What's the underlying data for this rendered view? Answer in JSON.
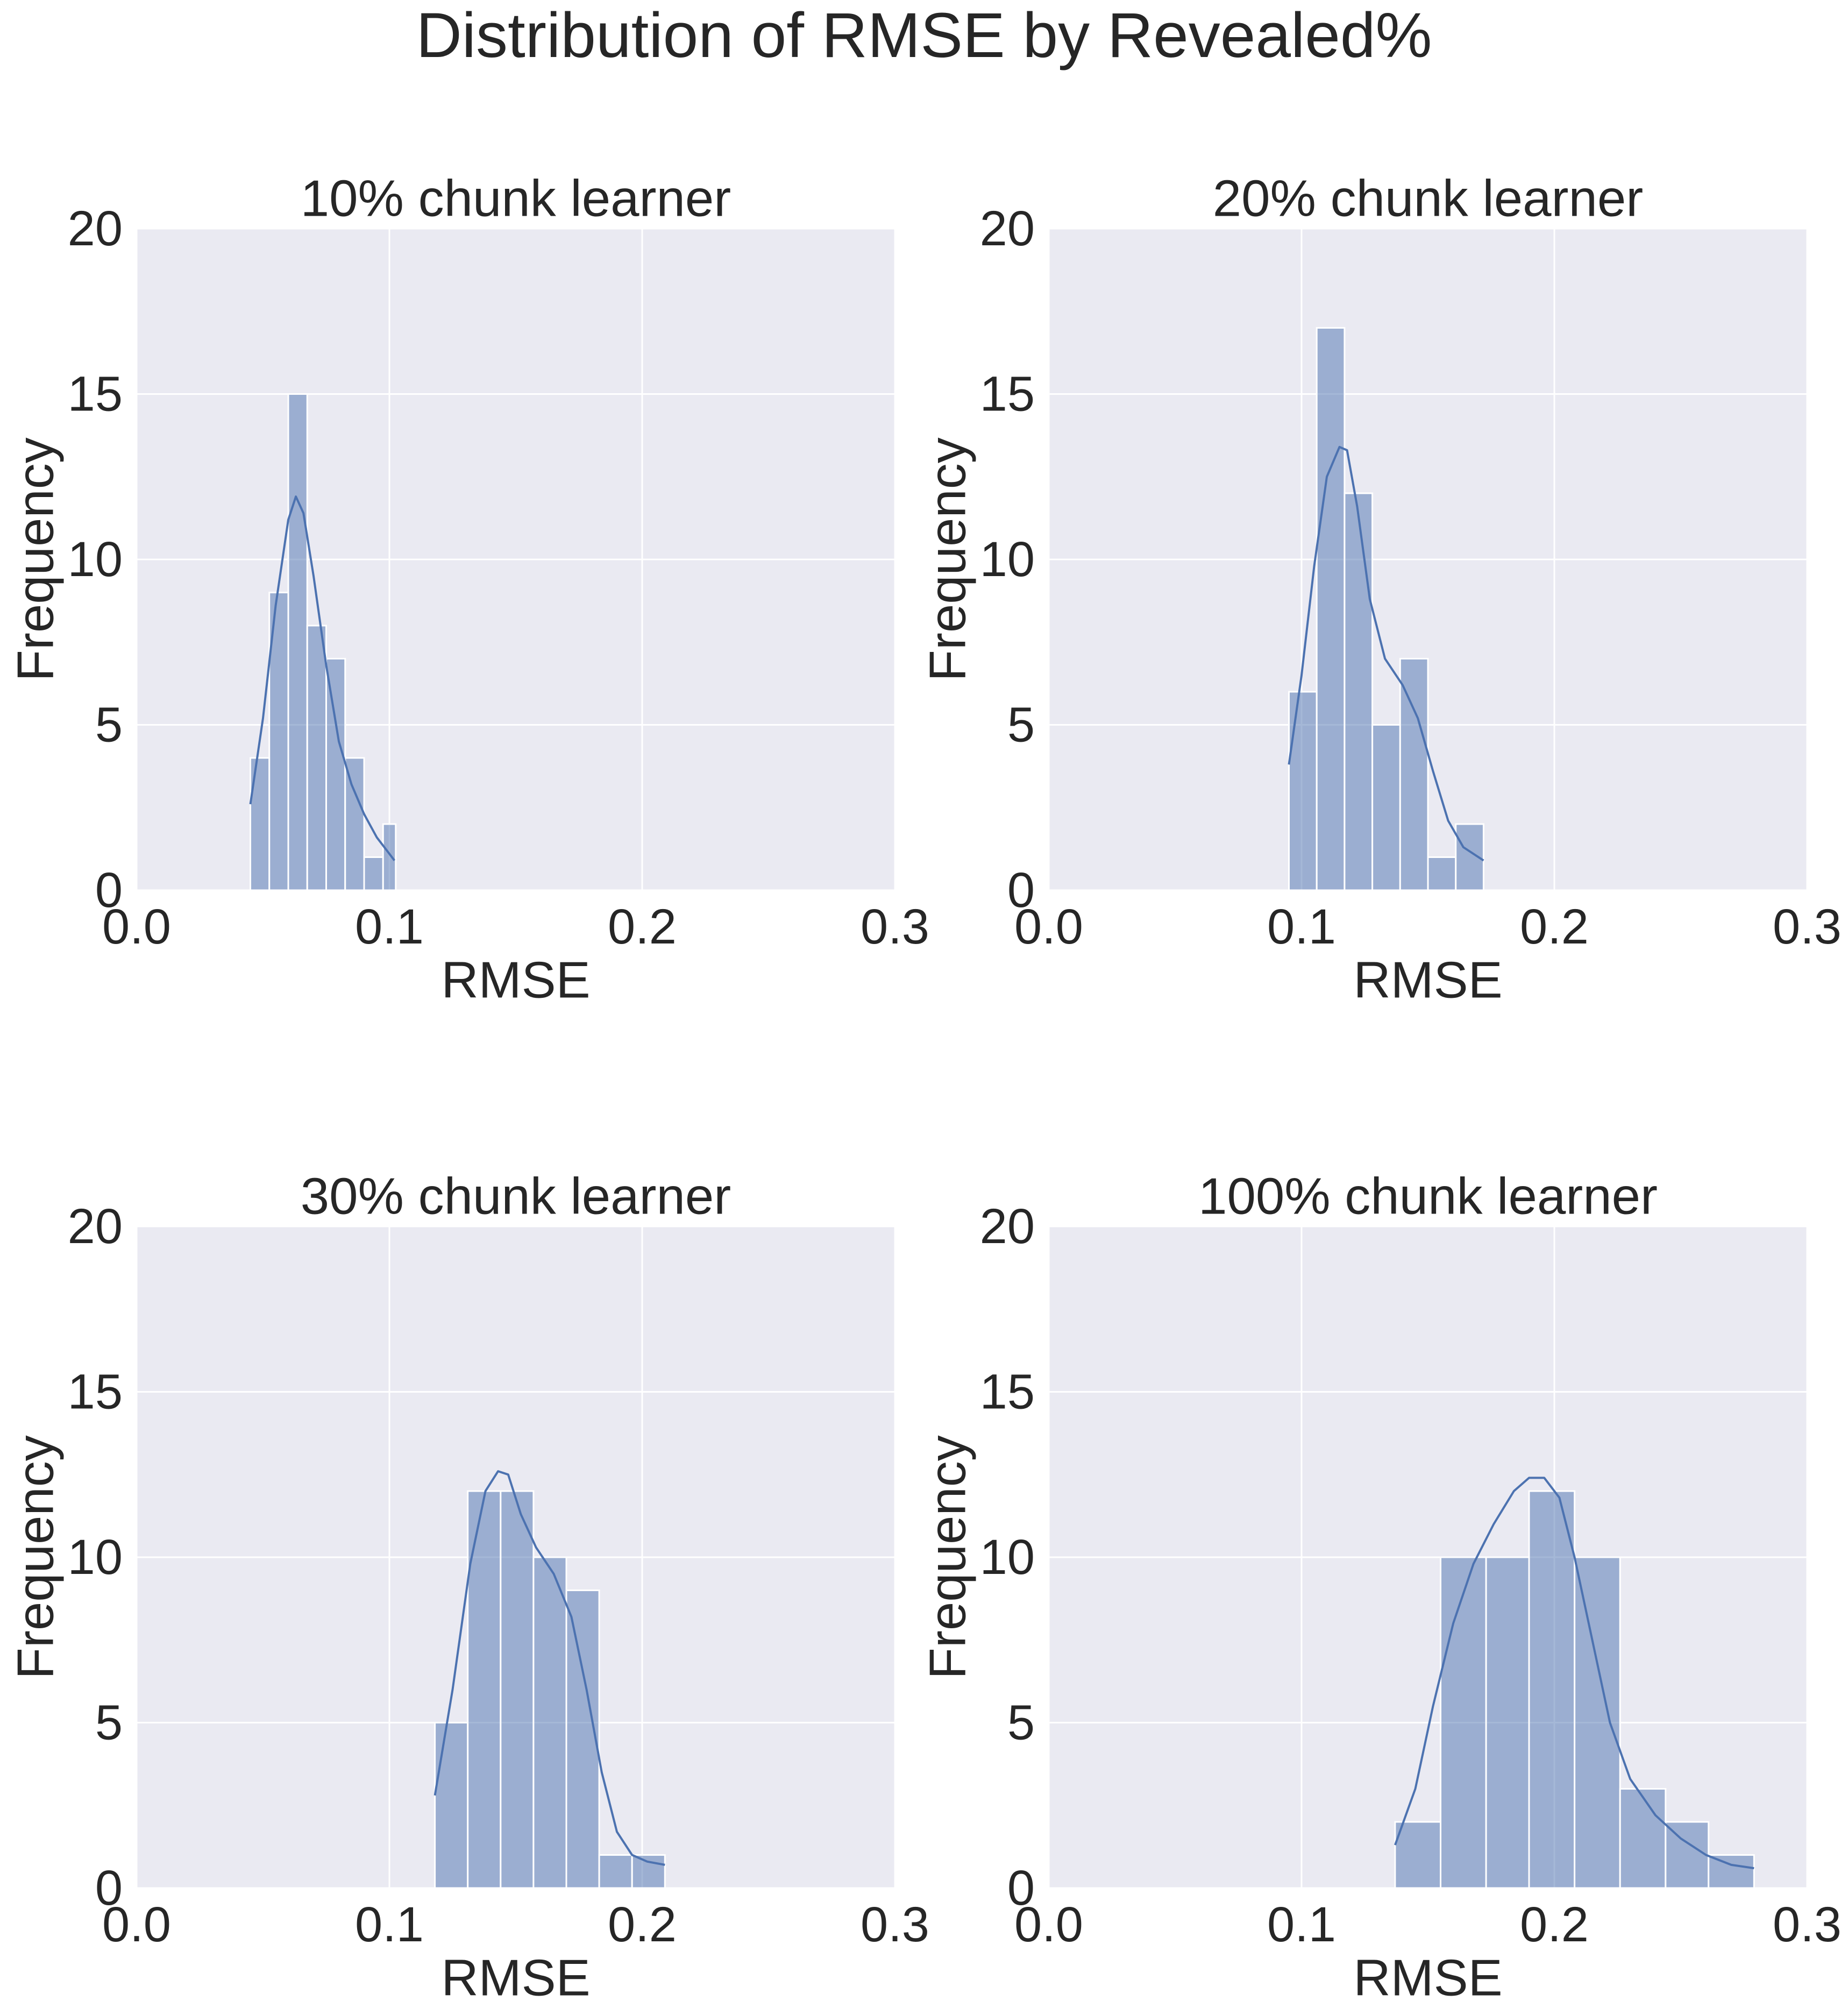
{
  "suptitle": "Distribution of RMSE by Revealed%",
  "colors": {
    "panel_bg": "#eaeaf2",
    "grid": "#ffffff",
    "bar_fill": "#4c72b0",
    "bar_edge": "#ffffff",
    "kde_line": "#4c72b0",
    "text": "#262626"
  },
  "chart_data": [
    {
      "type": "histogram",
      "title": "10% chunk learner",
      "xlabel": "RMSE",
      "ylabel": "Frequency",
      "xlim": [
        0.0,
        0.3
      ],
      "ylim": [
        0,
        20
      ],
      "xticks": [
        "0.0",
        "0.1",
        "0.2",
        "0.3"
      ],
      "yticks": [
        "0",
        "5",
        "10",
        "15",
        "20"
      ],
      "grid": true,
      "bins": [
        {
          "x0": 0.045,
          "x1": 0.0525,
          "count": 4
        },
        {
          "x0": 0.0525,
          "x1": 0.06,
          "count": 9
        },
        {
          "x0": 0.06,
          "x1": 0.0675,
          "count": 15
        },
        {
          "x0": 0.0675,
          "x1": 0.075,
          "count": 8
        },
        {
          "x0": 0.075,
          "x1": 0.0825,
          "count": 7
        },
        {
          "x0": 0.0825,
          "x1": 0.09,
          "count": 4
        },
        {
          "x0": 0.09,
          "x1": 0.0975,
          "count": 1
        },
        {
          "x0": 0.0975,
          "x1": 0.1025,
          "count": 2
        }
      ],
      "kde": {
        "x": [
          0.045,
          0.05,
          0.055,
          0.06,
          0.063,
          0.066,
          0.07,
          0.075,
          0.08,
          0.085,
          0.09,
          0.095,
          0.1,
          0.102
        ],
        "y": [
          2.6,
          5.2,
          8.6,
          11.2,
          11.9,
          11.4,
          9.5,
          6.8,
          4.5,
          3.2,
          2.3,
          1.6,
          1.1,
          0.9
        ]
      }
    },
    {
      "type": "histogram",
      "title": "20% chunk learner",
      "xlabel": "RMSE",
      "ylabel": "Frequency",
      "xlim": [
        0.0,
        0.3
      ],
      "ylim": [
        0,
        20
      ],
      "xticks": [
        "0.0",
        "0.1",
        "0.2",
        "0.3"
      ],
      "yticks": [
        "0",
        "5",
        "10",
        "15",
        "20"
      ],
      "grid": true,
      "bins": [
        {
          "x0": 0.095,
          "x1": 0.106,
          "count": 6
        },
        {
          "x0": 0.106,
          "x1": 0.117,
          "count": 17
        },
        {
          "x0": 0.117,
          "x1": 0.128,
          "count": 12
        },
        {
          "x0": 0.128,
          "x1": 0.139,
          "count": 5
        },
        {
          "x0": 0.139,
          "x1": 0.15,
          "count": 7
        },
        {
          "x0": 0.15,
          "x1": 0.161,
          "count": 1
        },
        {
          "x0": 0.161,
          "x1": 0.172,
          "count": 2
        }
      ],
      "kde": {
        "x": [
          0.095,
          0.1,
          0.105,
          0.11,
          0.115,
          0.118,
          0.122,
          0.127,
          0.133,
          0.14,
          0.146,
          0.152,
          0.158,
          0.164,
          0.172
        ],
        "y": [
          3.8,
          6.5,
          9.8,
          12.5,
          13.4,
          13.3,
          11.6,
          8.8,
          7.0,
          6.2,
          5.2,
          3.6,
          2.1,
          1.3,
          0.9
        ]
      }
    },
    {
      "type": "histogram",
      "title": "30% chunk learner",
      "xlabel": "RMSE",
      "ylabel": "Frequency",
      "xlim": [
        0.0,
        0.3
      ],
      "ylim": [
        0,
        20
      ],
      "xticks": [
        "0.0",
        "0.1",
        "0.2",
        "0.3"
      ],
      "yticks": [
        "0",
        "5",
        "10",
        "15",
        "20"
      ],
      "grid": true,
      "bins": [
        {
          "x0": 0.118,
          "x1": 0.131,
          "count": 5
        },
        {
          "x0": 0.131,
          "x1": 0.144,
          "count": 12
        },
        {
          "x0": 0.144,
          "x1": 0.157,
          "count": 12
        },
        {
          "x0": 0.157,
          "x1": 0.17,
          "count": 10
        },
        {
          "x0": 0.17,
          "x1": 0.183,
          "count": 9
        },
        {
          "x0": 0.183,
          "x1": 0.196,
          "count": 1
        },
        {
          "x0": 0.196,
          "x1": 0.209,
          "count": 1
        }
      ],
      "kde": {
        "x": [
          0.118,
          0.125,
          0.132,
          0.138,
          0.143,
          0.147,
          0.152,
          0.158,
          0.165,
          0.172,
          0.178,
          0.184,
          0.19,
          0.196,
          0.202,
          0.209
        ],
        "y": [
          2.8,
          6.0,
          9.8,
          12.0,
          12.6,
          12.5,
          11.3,
          10.3,
          9.5,
          8.2,
          6.0,
          3.5,
          1.7,
          1.0,
          0.8,
          0.7
        ]
      }
    },
    {
      "type": "histogram",
      "title": "100% chunk learner",
      "xlabel": "RMSE",
      "ylabel": "Frequency",
      "xlim": [
        0.0,
        0.3
      ],
      "ylim": [
        0,
        20
      ],
      "xticks": [
        "0.0",
        "0.1",
        "0.2",
        "0.3"
      ],
      "yticks": [
        "0",
        "5",
        "10",
        "15",
        "20"
      ],
      "grid": true,
      "bins": [
        {
          "x0": 0.137,
          "x1": 0.155,
          "count": 2
        },
        {
          "x0": 0.155,
          "x1": 0.173,
          "count": 10
        },
        {
          "x0": 0.173,
          "x1": 0.19,
          "count": 10
        },
        {
          "x0": 0.19,
          "x1": 0.208,
          "count": 12
        },
        {
          "x0": 0.208,
          "x1": 0.226,
          "count": 10
        },
        {
          "x0": 0.226,
          "x1": 0.244,
          "count": 3
        },
        {
          "x0": 0.244,
          "x1": 0.261,
          "count": 2
        },
        {
          "x0": 0.261,
          "x1": 0.279,
          "count": 1
        }
      ],
      "kde": {
        "x": [
          0.137,
          0.145,
          0.152,
          0.16,
          0.168,
          0.176,
          0.184,
          0.19,
          0.196,
          0.202,
          0.208,
          0.215,
          0.222,
          0.23,
          0.24,
          0.25,
          0.26,
          0.27,
          0.279
        ],
        "y": [
          1.3,
          3.0,
          5.5,
          8.0,
          9.8,
          11.0,
          12.0,
          12.4,
          12.4,
          11.8,
          10.0,
          7.5,
          5.0,
          3.3,
          2.2,
          1.5,
          1.0,
          0.7,
          0.6
        ]
      }
    }
  ]
}
